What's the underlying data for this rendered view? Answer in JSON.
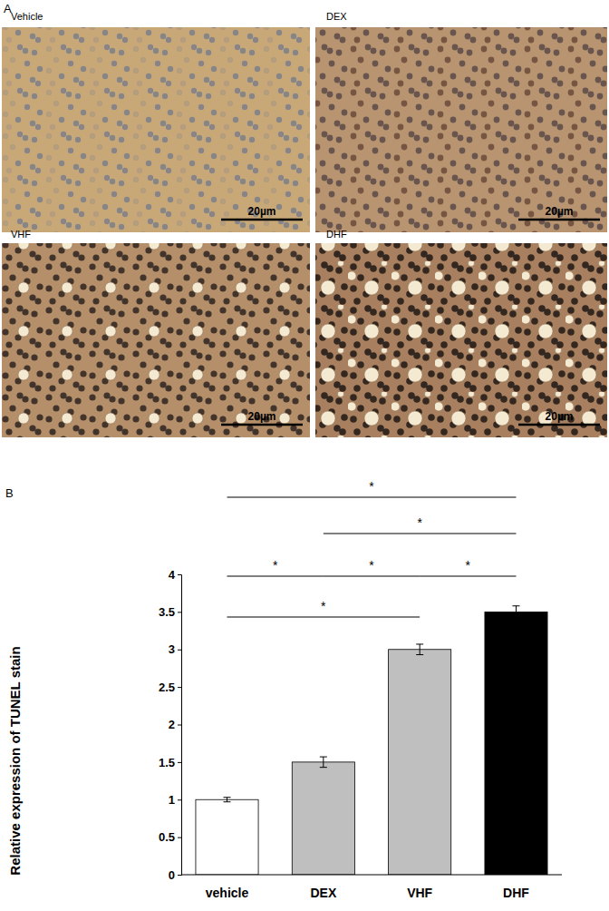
{
  "figure": {
    "panel_labels": [
      "A",
      "B"
    ],
    "micrographs": [
      {
        "title": "Vehicle",
        "scale_bar": "20µm"
      },
      {
        "title": "DEX",
        "scale_bar": "20µm"
      },
      {
        "title": "VHF",
        "scale_bar": "20µm"
      },
      {
        "title": "DHF",
        "scale_bar": "20µm"
      }
    ]
  },
  "chart_data": {
    "type": "bar",
    "y_label": "Relative expression of TUNEL stain",
    "categories": [
      "vehicle",
      "DEX",
      "VHF",
      "DHF"
    ],
    "values": [
      1,
      1.5,
      3,
      3.5
    ],
    "errors": [
      0.03,
      0.07,
      0.07,
      0.08
    ],
    "colors": [
      "#ffffff",
      "#bfbfbf",
      "#bfbfbf",
      "#000000"
    ],
    "ylim": [
      0,
      4
    ],
    "yticks": [
      0,
      0.5,
      1,
      1.5,
      2,
      2.5,
      3,
      3.5,
      4
    ],
    "grid": false,
    "annotations": [
      {
        "from": 0,
        "to": 3,
        "text": "*"
      },
      {
        "from": 1,
        "to": 3,
        "text": "*"
      },
      {
        "from": 0,
        "to": 1,
        "text": "*"
      },
      {
        "from": 1,
        "to": 2,
        "text": "*"
      },
      {
        "from": 2,
        "to": 3,
        "text": "*"
      },
      {
        "from": 0,
        "to": 2,
        "text": "*"
      }
    ]
  }
}
